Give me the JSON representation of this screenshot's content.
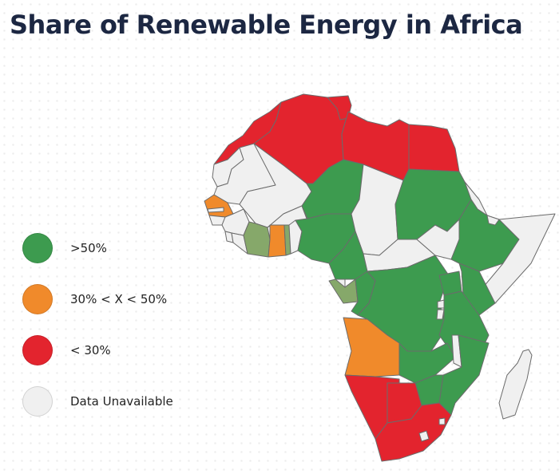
{
  "title": "Share of Renewable Energy in Africa",
  "colors": {
    "high": "#3d9b4f",
    "mid": "#f08a2b",
    "low": "#e3242e",
    "na": "#f0f0f0",
    "ivory_coast_ghana_area": "#86a86a",
    "title": "#1c2742"
  },
  "legend": {
    "items": [
      {
        "label": ">50%",
        "category": "high"
      },
      {
        "label": "30% < X < 50%",
        "category": "mid"
      },
      {
        "label": "< 30%",
        "category": "low"
      },
      {
        "label": "Data Unavailable",
        "category": "na"
      }
    ]
  },
  "countries": {
    "morocco": "low",
    "algeria": "low",
    "tunisia": "low",
    "libya": "low",
    "egypt": "low",
    "western_sahara": "na",
    "mauritania": "na",
    "mali": "na",
    "senegal": "mid",
    "gambia": "na",
    "guinea_bissau": "na",
    "guinea": "na",
    "sierra_leone": "na",
    "liberia": "na",
    "cote_divoire": "mixed",
    "burkina_faso": "na",
    "ghana": "mid",
    "togo": "mixed",
    "benin": "na",
    "niger": "high",
    "nigeria": "high",
    "chad": "na",
    "cameroon": "high",
    "central_african_republic": "na",
    "sudan": "high",
    "south_sudan": "na",
    "eritrea": "na",
    "ethiopia": "high",
    "djibouti": "na",
    "somalia": "na",
    "equatorial_guinea": "na",
    "gabon": "mixed",
    "congo": "high",
    "dr_congo": "high",
    "uganda": "high",
    "kenya": "high",
    "rwanda": "na",
    "burundi": "na",
    "tanzania": "high",
    "angola": "mid",
    "zambia": "high",
    "malawi": "na",
    "mozambique": "high",
    "zimbabwe": "high",
    "namibia": "low",
    "botswana": "low",
    "south_africa": "low",
    "lesotho": "na",
    "eswatini": "na",
    "madagascar": "na"
  }
}
